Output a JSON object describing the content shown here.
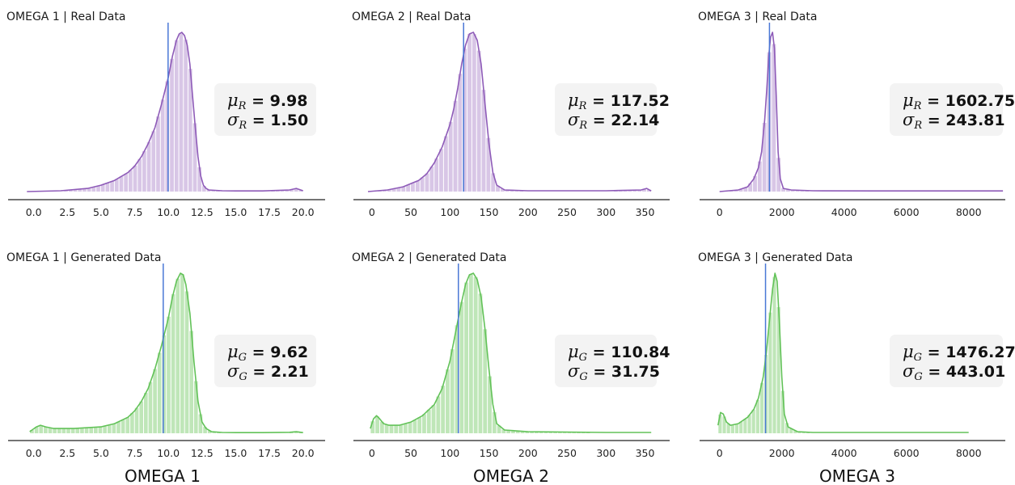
{
  "column_labels": [
    "OMEGA 1",
    "OMEGA 2",
    "OMEGA 3"
  ],
  "chart_data": [
    {
      "type": "histogram",
      "title": "OMEGA 1  |  Real Data",
      "series": "real",
      "color": "#8e5bb8",
      "bar_color": "#d8c6e6",
      "mean_line_color": "#4a78d6",
      "xlim": [
        -1.0,
        20.5
      ],
      "xticks": [
        0,
        2.5,
        5,
        7.5,
        10,
        12.5,
        15,
        17.5,
        20
      ],
      "xtick_labels": [
        "0.0",
        "2.5",
        "5.0",
        "7.5",
        "10.0",
        "12.5",
        "15.0",
        "17.5",
        "20.0"
      ],
      "mean_line": 9.98,
      "stats": {
        "mu_symbol": "μ",
        "sigma_symbol": "σ",
        "sub": "R",
        "mu": "9.98",
        "sigma": "1.50"
      },
      "density_x": [
        -0.5,
        2.0,
        4.0,
        5.0,
        6.0,
        7.0,
        7.5,
        8.0,
        8.5,
        9.0,
        9.5,
        10.0,
        10.3,
        10.6,
        10.8,
        11.0,
        11.2,
        11.4,
        11.6,
        11.8,
        12.0,
        12.2,
        12.4,
        12.6,
        12.8,
        13.0,
        14.0,
        15.0,
        17.0,
        19.0,
        19.5,
        20.0
      ],
      "density_y": [
        0.0,
        0.005,
        0.02,
        0.04,
        0.07,
        0.12,
        0.16,
        0.22,
        0.3,
        0.4,
        0.55,
        0.72,
        0.85,
        0.95,
        0.99,
        1.0,
        0.98,
        0.92,
        0.8,
        0.6,
        0.4,
        0.22,
        0.1,
        0.04,
        0.02,
        0.01,
        0.005,
        0.004,
        0.004,
        0.01,
        0.02,
        0.005
      ]
    },
    {
      "type": "histogram",
      "title": "OMEGA 2  |  Real Data",
      "series": "real",
      "color": "#8e5bb8",
      "bar_color": "#d8c6e6",
      "mean_line_color": "#4a78d6",
      "xlim": [
        -5,
        365
      ],
      "xticks": [
        0,
        50,
        100,
        150,
        200,
        250,
        300,
        350
      ],
      "xtick_labels": [
        "0",
        "50",
        "100",
        "150",
        "200",
        "250",
        "300",
        "350"
      ],
      "mean_line": 117.52,
      "stats": {
        "mu_symbol": "μ",
        "sigma_symbol": "σ",
        "sub": "R",
        "mu": "117.52",
        "sigma": "22.14"
      },
      "density_x": [
        -5,
        20,
        40,
        60,
        70,
        80,
        90,
        100,
        105,
        110,
        115,
        120,
        125,
        130,
        135,
        140,
        145,
        150,
        155,
        160,
        170,
        200,
        250,
        300,
        345,
        352,
        358
      ],
      "density_y": [
        0.0,
        0.01,
        0.03,
        0.07,
        0.11,
        0.18,
        0.28,
        0.42,
        0.52,
        0.65,
        0.8,
        0.92,
        0.99,
        1.0,
        0.95,
        0.8,
        0.55,
        0.3,
        0.12,
        0.04,
        0.01,
        0.005,
        0.005,
        0.005,
        0.01,
        0.02,
        0.004
      ]
    },
    {
      "type": "histogram",
      "title": "OMEGA 3  |  Real Data",
      "series": "real",
      "color": "#8e5bb8",
      "bar_color": "#d8c6e6",
      "mean_line_color": "#4a78d6",
      "xlim": [
        -200,
        9150
      ],
      "xticks": [
        0,
        2000,
        4000,
        6000,
        8000
      ],
      "xtick_labels": [
        "0",
        "2000",
        "4000",
        "6000",
        "8000"
      ],
      "mean_line": 1602.75,
      "stats": {
        "mu_symbol": "μ",
        "sigma_symbol": "σ",
        "sub": "R",
        "mu": "1602.75",
        "sigma": "243.81"
      },
      "density_x": [
        0,
        600,
        900,
        1100,
        1250,
        1350,
        1450,
        1520,
        1580,
        1640,
        1700,
        1760,
        1820,
        1880,
        1950,
        2050,
        2300,
        3000,
        5000,
        8000,
        9100
      ],
      "density_y": [
        0.0,
        0.01,
        0.03,
        0.08,
        0.15,
        0.25,
        0.45,
        0.65,
        0.85,
        0.97,
        1.0,
        0.9,
        0.6,
        0.25,
        0.08,
        0.02,
        0.01,
        0.005,
        0.004,
        0.004,
        0.004
      ]
    },
    {
      "type": "histogram",
      "title": "OMEGA 1  |  Generated Data",
      "series": "generated",
      "color": "#62c258",
      "bar_color": "#bfe6b8",
      "mean_line_color": "#4a78d6",
      "xlim": [
        -1.0,
        20.5
      ],
      "xticks": [
        0,
        2.5,
        5,
        7.5,
        10,
        12.5,
        15,
        17.5,
        20
      ],
      "xtick_labels": [
        "0.0",
        "2.5",
        "5.0",
        "7.5",
        "10.0",
        "12.5",
        "15.0",
        "17.5",
        "20.0"
      ],
      "mean_line": 9.62,
      "stats": {
        "mu_symbol": "μ",
        "sigma_symbol": "σ",
        "sub": "G",
        "mu": "9.62",
        "sigma": "2.21"
      },
      "density_x": [
        -0.3,
        0.2,
        0.5,
        0.9,
        1.5,
        3.0,
        5.0,
        6.0,
        7.0,
        7.5,
        8.0,
        8.5,
        9.0,
        9.5,
        10.0,
        10.3,
        10.6,
        10.9,
        11.1,
        11.3,
        11.6,
        11.9,
        12.2,
        12.5,
        12.8,
        13.2,
        14.0,
        15.0,
        17.0,
        19.0,
        19.5,
        20.0
      ],
      "density_y": [
        0.01,
        0.04,
        0.05,
        0.04,
        0.03,
        0.03,
        0.04,
        0.06,
        0.1,
        0.14,
        0.2,
        0.28,
        0.4,
        0.55,
        0.72,
        0.85,
        0.95,
        1.0,
        0.99,
        0.93,
        0.75,
        0.45,
        0.2,
        0.07,
        0.03,
        0.01,
        0.005,
        0.004,
        0.004,
        0.006,
        0.01,
        0.004
      ]
    },
    {
      "type": "histogram",
      "title": "OMEGA 2  |  Generated Data",
      "series": "generated",
      "color": "#62c258",
      "bar_color": "#bfe6b8",
      "mean_line_color": "#4a78d6",
      "xlim": [
        -5,
        365
      ],
      "xticks": [
        0,
        50,
        100,
        150,
        200,
        250,
        300,
        350
      ],
      "xtick_labels": [
        "0",
        "50",
        "100",
        "150",
        "200",
        "250",
        "300",
        "350"
      ],
      "mean_line": 110.84,
      "stats": {
        "mu_symbol": "μ",
        "sigma_symbol": "σ",
        "sub": "G",
        "mu": "110.84",
        "sigma": "31.75"
      },
      "density_x": [
        -2,
        2,
        6,
        10,
        15,
        22,
        35,
        50,
        65,
        80,
        90,
        100,
        110,
        115,
        120,
        125,
        130,
        135,
        140,
        145,
        150,
        155,
        160,
        170,
        200,
        300,
        358
      ],
      "density_y": [
        0.03,
        0.09,
        0.11,
        0.09,
        0.06,
        0.05,
        0.05,
        0.07,
        0.11,
        0.18,
        0.28,
        0.45,
        0.7,
        0.82,
        0.93,
        0.99,
        1.0,
        0.96,
        0.85,
        0.65,
        0.4,
        0.18,
        0.06,
        0.02,
        0.01,
        0.005,
        0.005
      ]
    },
    {
      "type": "histogram",
      "title": "OMEGA 3  |  Generated Data",
      "series": "generated",
      "color": "#62c258",
      "bar_color": "#bfe6b8",
      "mean_line_color": "#4a78d6",
      "xlim": [
        -200,
        9150
      ],
      "xticks": [
        0,
        2000,
        4000,
        6000,
        8000
      ],
      "xtick_labels": [
        "0",
        "2000",
        "4000",
        "6000",
        "8000"
      ],
      "mean_line": 1476.27,
      "stats": {
        "mu_symbol": "μ",
        "sigma_symbol": "σ",
        "sub": "G",
        "mu": "1476.27",
        "sigma": "443.01"
      },
      "density_x": [
        -50,
        30,
        120,
        220,
        350,
        600,
        900,
        1100,
        1250,
        1400,
        1500,
        1600,
        1700,
        1780,
        1850,
        1920,
        2000,
        2080,
        2200,
        2500,
        3000,
        8000
      ],
      "density_y": [
        0.05,
        0.13,
        0.12,
        0.07,
        0.05,
        0.06,
        0.1,
        0.15,
        0.22,
        0.35,
        0.5,
        0.7,
        0.9,
        1.0,
        0.95,
        0.7,
        0.35,
        0.12,
        0.04,
        0.01,
        0.005,
        0.005
      ]
    }
  ]
}
